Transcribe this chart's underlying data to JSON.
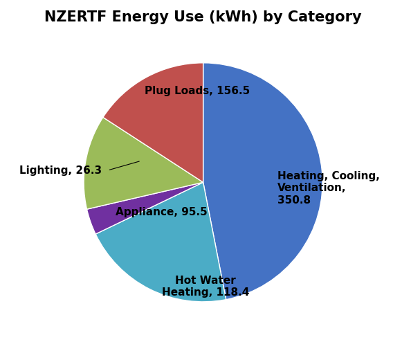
{
  "title": "NZERTF Energy Use (kWh) by Category",
  "labels_display": [
    "Heating, Cooling,\nVentilation,\n350.8",
    "Plug Loads, 156.5",
    "Lighting, 26.3",
    "Appliance, 95.5",
    "Hot Water\nHeating, 118.4"
  ],
  "values": [
    350.8,
    156.5,
    26.3,
    95.5,
    118.4
  ],
  "colors": [
    "#4472C4",
    "#4BACC6",
    "#7030A0",
    "#9BBB59",
    "#C0504D"
  ],
  "startangle": 90,
  "counterclock": false,
  "title_fontsize": 15,
  "label_fontsize": 11
}
